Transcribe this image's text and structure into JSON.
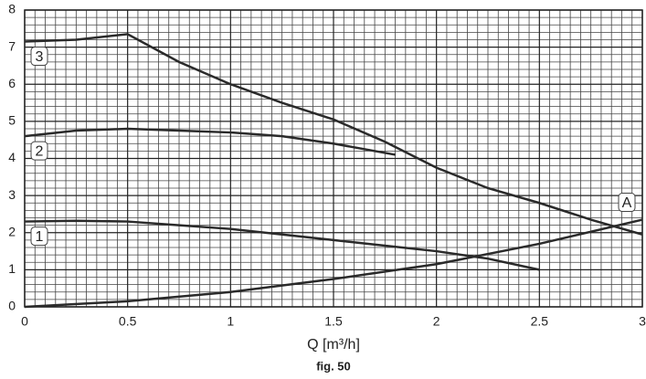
{
  "chart_data": {
    "type": "line",
    "xlabel": "Q [m³/h]",
    "caption": "fig. 50",
    "xlim": [
      0,
      3
    ],
    "ylim": [
      0,
      8
    ],
    "xticks": [
      0,
      0.5,
      1,
      1.5,
      2,
      2.5,
      3
    ],
    "yticks": [
      0,
      1,
      2,
      3,
      4,
      5,
      6,
      7,
      8
    ],
    "grid": true,
    "series": [
      {
        "name": "3",
        "color": "#2a2a2a",
        "x": [
          0,
          0.25,
          0.5,
          0.75,
          1,
          1.25,
          1.5,
          1.75,
          2,
          2.25,
          2.5,
          2.75,
          3
        ],
        "values": [
          7.15,
          7.2,
          7.35,
          6.6,
          6.0,
          5.5,
          5.05,
          4.45,
          3.75,
          3.2,
          2.8,
          2.35,
          1.95
        ]
      },
      {
        "name": "2",
        "color": "#2a2a2a",
        "x": [
          0,
          0.25,
          0.5,
          0.75,
          1,
          1.25,
          1.5,
          1.8
        ],
        "values": [
          4.6,
          4.75,
          4.8,
          4.75,
          4.7,
          4.6,
          4.4,
          4.1
        ]
      },
      {
        "name": "1",
        "color": "#2a2a2a",
        "x": [
          0,
          0.25,
          0.5,
          0.75,
          1,
          1.25,
          1.5,
          1.75,
          2,
          2.25,
          2.5
        ],
        "values": [
          2.3,
          2.32,
          2.3,
          2.2,
          2.1,
          1.95,
          1.8,
          1.65,
          1.5,
          1.3,
          1.0
        ]
      },
      {
        "name": "A",
        "color": "#2a2a2a",
        "x": [
          0,
          0.5,
          1,
          1.5,
          2,
          2.5,
          3
        ],
        "values": [
          0,
          0.15,
          0.4,
          0.75,
          1.15,
          1.7,
          2.35
        ]
      }
    ]
  }
}
